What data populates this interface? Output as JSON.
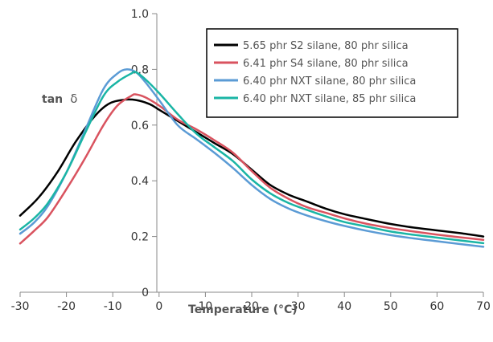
{
  "chart_data": {
    "type": "line",
    "xlabel": "Temperature (°C)",
    "ylabel_main": "tan",
    "ylabel_symbol": "δ",
    "xlim": [
      -30,
      70
    ],
    "ylim": [
      0,
      1.0
    ],
    "x_ticks": [
      -30,
      -20,
      -10,
      0,
      10,
      20,
      30,
      40,
      50,
      60,
      70
    ],
    "y_ticks": [
      0,
      0.2,
      0.4,
      0.6,
      0.8,
      1.0
    ],
    "y_tick_labels": [
      "0",
      "0.2",
      "0.4",
      "0.6",
      "0.8",
      "1.0"
    ],
    "grid": false,
    "legend_position": "top-right",
    "series": [
      {
        "name": "5.65 phr S2 silane, 80 phr silica",
        "color": "#000000",
        "points": [
          [
            -30,
            0.275
          ],
          [
            -26,
            0.34
          ],
          [
            -22,
            0.43
          ],
          [
            -18,
            0.54
          ],
          [
            -14,
            0.63
          ],
          [
            -11,
            0.675
          ],
          [
            -8,
            0.69
          ],
          [
            -5,
            0.69
          ],
          [
            -2,
            0.675
          ],
          [
            0,
            0.655
          ],
          [
            4,
            0.615
          ],
          [
            8,
            0.575
          ],
          [
            12,
            0.535
          ],
          [
            16,
            0.495
          ],
          [
            20,
            0.44
          ],
          [
            24,
            0.385
          ],
          [
            28,
            0.35
          ],
          [
            32,
            0.325
          ],
          [
            36,
            0.3
          ],
          [
            40,
            0.28
          ],
          [
            45,
            0.262
          ],
          [
            50,
            0.245
          ],
          [
            55,
            0.232
          ],
          [
            60,
            0.222
          ],
          [
            65,
            0.212
          ],
          [
            70,
            0.2
          ]
        ]
      },
      {
        "name": "6.41 phr S4 silane, 80 phr silica",
        "color": "#d9535f",
        "points": [
          [
            -30,
            0.175
          ],
          [
            -27,
            0.22
          ],
          [
            -24,
            0.27
          ],
          [
            -20,
            0.37
          ],
          [
            -16,
            0.48
          ],
          [
            -12,
            0.6
          ],
          [
            -9,
            0.67
          ],
          [
            -6,
            0.705
          ],
          [
            -5,
            0.71
          ],
          [
            -3,
            0.7
          ],
          [
            0,
            0.67
          ],
          [
            4,
            0.62
          ],
          [
            8,
            0.585
          ],
          [
            12,
            0.545
          ],
          [
            16,
            0.5
          ],
          [
            20,
            0.435
          ],
          [
            24,
            0.375
          ],
          [
            28,
            0.335
          ],
          [
            32,
            0.305
          ],
          [
            36,
            0.285
          ],
          [
            40,
            0.265
          ],
          [
            45,
            0.245
          ],
          [
            50,
            0.23
          ],
          [
            55,
            0.218
          ],
          [
            60,
            0.207
          ],
          [
            65,
            0.197
          ],
          [
            70,
            0.188
          ]
        ]
      },
      {
        "name": "6.40 phr NXT silane, 80 phr silica",
        "color": "#5b9bd5",
        "points": [
          [
            -30,
            0.21
          ],
          [
            -27,
            0.25
          ],
          [
            -24,
            0.31
          ],
          [
            -20,
            0.43
          ],
          [
            -16,
            0.58
          ],
          [
            -12,
            0.73
          ],
          [
            -9,
            0.785
          ],
          [
            -7,
            0.8
          ],
          [
            -5,
            0.79
          ],
          [
            -3,
            0.755
          ],
          [
            0,
            0.69
          ],
          [
            4,
            0.6
          ],
          [
            8,
            0.55
          ],
          [
            12,
            0.5
          ],
          [
            16,
            0.445
          ],
          [
            20,
            0.385
          ],
          [
            24,
            0.335
          ],
          [
            28,
            0.3
          ],
          [
            32,
            0.275
          ],
          [
            36,
            0.255
          ],
          [
            40,
            0.238
          ],
          [
            45,
            0.22
          ],
          [
            50,
            0.205
          ],
          [
            55,
            0.193
          ],
          [
            60,
            0.183
          ],
          [
            65,
            0.173
          ],
          [
            70,
            0.163
          ]
        ]
      },
      {
        "name": "6.40 phr NXT silane, 85 phr silica",
        "color": "#1ab5a5",
        "points": [
          [
            -30,
            0.225
          ],
          [
            -27,
            0.265
          ],
          [
            -24,
            0.32
          ],
          [
            -20,
            0.43
          ],
          [
            -16,
            0.57
          ],
          [
            -12,
            0.705
          ],
          [
            -9,
            0.755
          ],
          [
            -6,
            0.785
          ],
          [
            -5,
            0.79
          ],
          [
            -3,
            0.765
          ],
          [
            0,
            0.715
          ],
          [
            4,
            0.64
          ],
          [
            8,
            0.57
          ],
          [
            12,
            0.52
          ],
          [
            16,
            0.47
          ],
          [
            20,
            0.405
          ],
          [
            24,
            0.355
          ],
          [
            28,
            0.32
          ],
          [
            32,
            0.295
          ],
          [
            36,
            0.272
          ],
          [
            40,
            0.252
          ],
          [
            45,
            0.235
          ],
          [
            50,
            0.218
          ],
          [
            55,
            0.206
          ],
          [
            60,
            0.196
          ],
          [
            65,
            0.186
          ],
          [
            70,
            0.176
          ]
        ]
      }
    ]
  }
}
